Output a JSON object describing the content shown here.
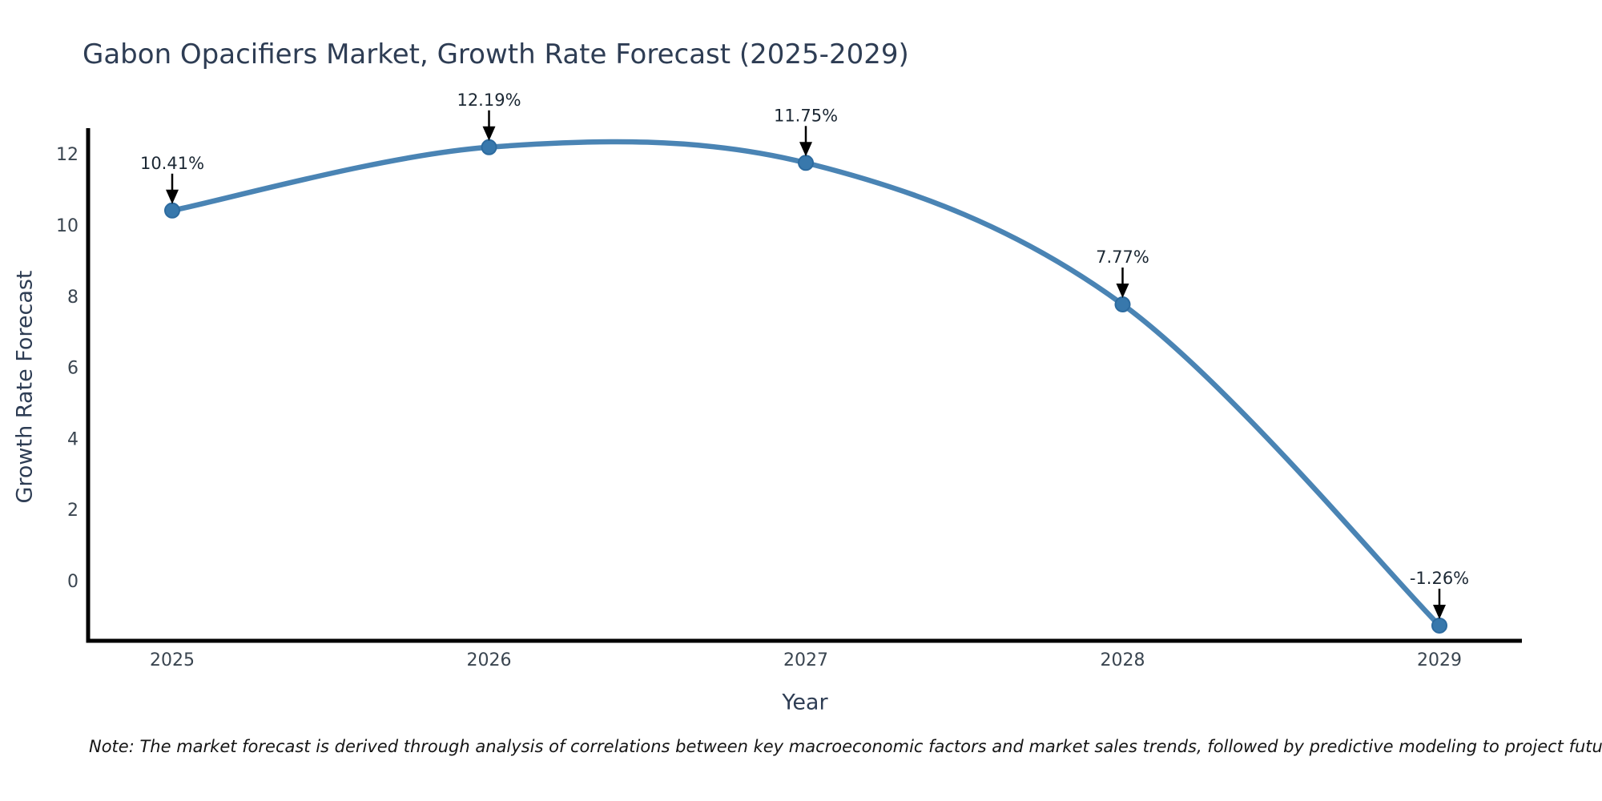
{
  "chart_data": {
    "type": "line",
    "title": "Gabon Opacifiers Market, Growth Rate Forecast (2025-2029)",
    "xlabel": "Year",
    "ylabel": "Growth Rate Forecast",
    "x": [
      2025,
      2026,
      2027,
      2028,
      2029
    ],
    "series": [
      {
        "name": "Growth Rate Forecast",
        "values": [
          10.41,
          12.19,
          11.75,
          7.77,
          -1.26
        ]
      }
    ],
    "point_labels": [
      "10.41%",
      "12.19%",
      "11.75%",
      "7.77%",
      "-1.26%"
    ],
    "yticks": [
      0,
      2,
      4,
      6,
      8,
      10,
      12
    ],
    "ylim": [
      -1.7,
      12.73
    ],
    "xlim": [
      2024.73,
      2029.27
    ],
    "grid": false,
    "legend": "none",
    "curve": "spline",
    "line_color": "#4a84b4",
    "marker_color": "#3878ac",
    "marker_edge_color": "#2d6b9f",
    "annotation_arrow_color": "#000000",
    "axis_color": "#000000",
    "title_color": "#2e3d54",
    "tick_color": "#3a4550"
  },
  "note": {
    "text": "Note: The market forecast is derived through analysis of correlations between key macroeconomic factors and market sales trends, followed by predictive modeling to project future sales."
  }
}
